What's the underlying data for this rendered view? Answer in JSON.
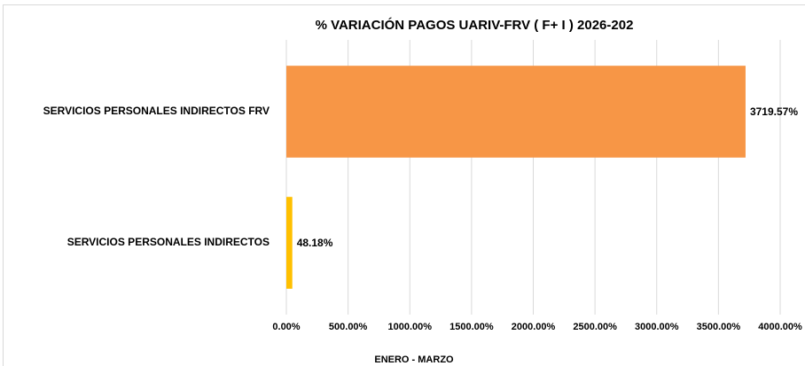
{
  "chart_data": {
    "type": "barh",
    "title": "% VARIACIÓN PAGOS UARIV-FRV ( F+ I ) 2026-202",
    "x_label": "ENERO - MARZO",
    "categories": [
      "SERVICIOS PERSONALES INDIRECTOS FRV",
      "SERVICIOS PERSONALES INDIRECTOS"
    ],
    "values": [
      3719.57,
      48.18
    ],
    "value_labels": [
      "3719.57%",
      "48.18%"
    ],
    "colors": [
      "#f79646",
      "#ffc000"
    ],
    "xlim": [
      0,
      4000
    ],
    "xticks": [
      {
        "value": 0,
        "label": "0.00%"
      },
      {
        "value": 500,
        "label": "500.00%"
      },
      {
        "value": 1000,
        "label": "1000.00%"
      },
      {
        "value": 1500,
        "label": "1500.00%"
      },
      {
        "value": 2000,
        "label": "2000.00%"
      },
      {
        "value": 2500,
        "label": "2500.00%"
      },
      {
        "value": 3000,
        "label": "3000.00%"
      },
      {
        "value": 3500,
        "label": "3500.00%"
      },
      {
        "value": 4000,
        "label": "4000.00%"
      }
    ],
    "grid": true
  }
}
